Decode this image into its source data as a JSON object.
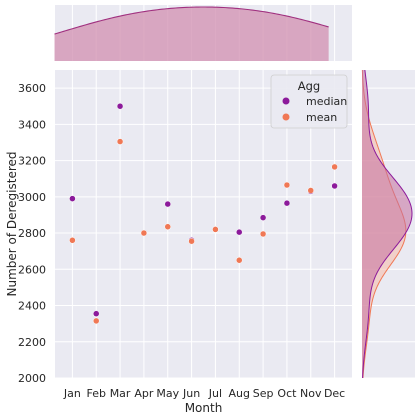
{
  "chart_data": {
    "type": "scatter",
    "subtype": "jointplot",
    "xlabel": "Month",
    "ylabel": "Number of Deregistered",
    "categories": [
      "Jan",
      "Feb",
      "Mar",
      "Apr",
      "May",
      "Jun",
      "Jul",
      "Aug",
      "Sep",
      "Oct",
      "Nov",
      "Dec"
    ],
    "ylim": [
      2000,
      3700
    ],
    "yticks": [
      2000,
      2200,
      2400,
      2600,
      2800,
      3000,
      3200,
      3400,
      3600
    ],
    "grid": true,
    "legend": {
      "title": "Agg",
      "placement": "top-right"
    },
    "series": [
      {
        "name": "median",
        "color": "#8c1a9b",
        "values": [
          2990,
          2355,
          3500,
          2800,
          2960,
          2760,
          2820,
          2805,
          2885,
          2965,
          3030,
          3060
        ]
      },
      {
        "name": "mean",
        "color": "#f07855",
        "values": [
          2760,
          2315,
          3305,
          2800,
          2835,
          2755,
          2820,
          2650,
          2795,
          3065,
          3035,
          3165
        ]
      }
    ],
    "marginal_x": {
      "type": "kde",
      "color": "#a0307f"
    },
    "marginal_y": {
      "type": "kde",
      "series": [
        "median",
        "mean"
      ]
    }
  }
}
